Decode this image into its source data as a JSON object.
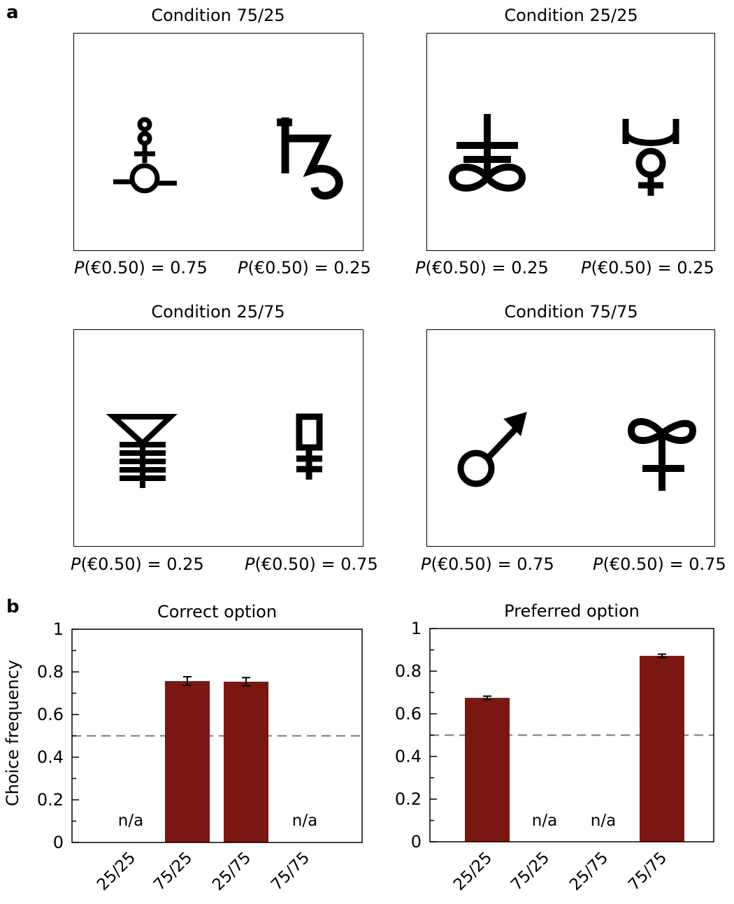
{
  "panel_a": {
    "letter": "a",
    "conditions": [
      {
        "title": "Condition 75/25",
        "left_symbol": "circle-chain-cross-symbol",
        "right_symbol": "saturn-symbol",
        "left_label": {
          "var": "P",
          "text": "(€0.50) = 0.75"
        },
        "right_label": {
          "var": "P",
          "text": "(€0.50) = 0.25"
        }
      },
      {
        "title": "Condition 25/25",
        "left_symbol": "leviathan-cross-symbol",
        "right_symbol": "mercury-symbol",
        "left_label": {
          "var": "P",
          "text": "(€0.50) = 0.25"
        },
        "right_label": {
          "var": "P",
          "text": "(€0.50) = 0.25"
        }
      },
      {
        "title": "Condition 25/75",
        "left_symbol": "funnel-ladder-symbol",
        "right_symbol": "square-cross-symbol",
        "left_label": {
          "var": "P",
          "text": "(€0.50) = 0.25"
        },
        "right_label": {
          "var": "P",
          "text": "(€0.50) = 0.75"
        }
      },
      {
        "title": "Condition 75/75",
        "left_symbol": "mars-symbol",
        "right_symbol": "infinity-cross-symbol",
        "left_label": {
          "var": "P",
          "text": "(€0.50) = 0.75"
        },
        "right_label": {
          "var": "P",
          "text": "(€0.50) = 0.75"
        }
      }
    ]
  },
  "panel_b": {
    "letter": "b"
  },
  "colors": {
    "bar": "#7b1712",
    "dashed_line": "#777777",
    "axis": "#000000"
  },
  "chart_data": [
    {
      "type": "bar",
      "title": "Correct option",
      "ylabel": "Choice frequency",
      "xlabel": "",
      "categories": [
        "25/25",
        "75/25",
        "25/75",
        "75/75"
      ],
      "values": [
        null,
        0.757,
        0.754,
        null
      ],
      "errors": [
        null,
        0.02,
        0.019,
        null
      ],
      "na_label": "n/a",
      "ylim": [
        0,
        1
      ],
      "yticks": [
        0,
        0.2,
        0.4,
        0.6,
        0.8,
        1
      ],
      "ytick_labels": [
        "0",
        "0.2",
        "0.4",
        "0.6",
        "0.8",
        "1"
      ],
      "reference_line": 0.5,
      "grid": false
    },
    {
      "type": "bar",
      "title": "Preferred option",
      "ylabel": "",
      "xlabel": "",
      "categories": [
        "25/25",
        "75/25",
        "25/75",
        "75/75"
      ],
      "values": [
        0.675,
        null,
        null,
        0.872
      ],
      "errors": [
        0.008,
        null,
        null,
        0.008
      ],
      "na_label": "n/a",
      "ylim": [
        0,
        1
      ],
      "yticks": [
        0,
        0.2,
        0.4,
        0.6,
        0.8,
        1
      ],
      "ytick_labels": [
        "0",
        "0.2",
        "0.4",
        "0.6",
        "0.8",
        "1"
      ],
      "reference_line": 0.5,
      "grid": false
    }
  ]
}
